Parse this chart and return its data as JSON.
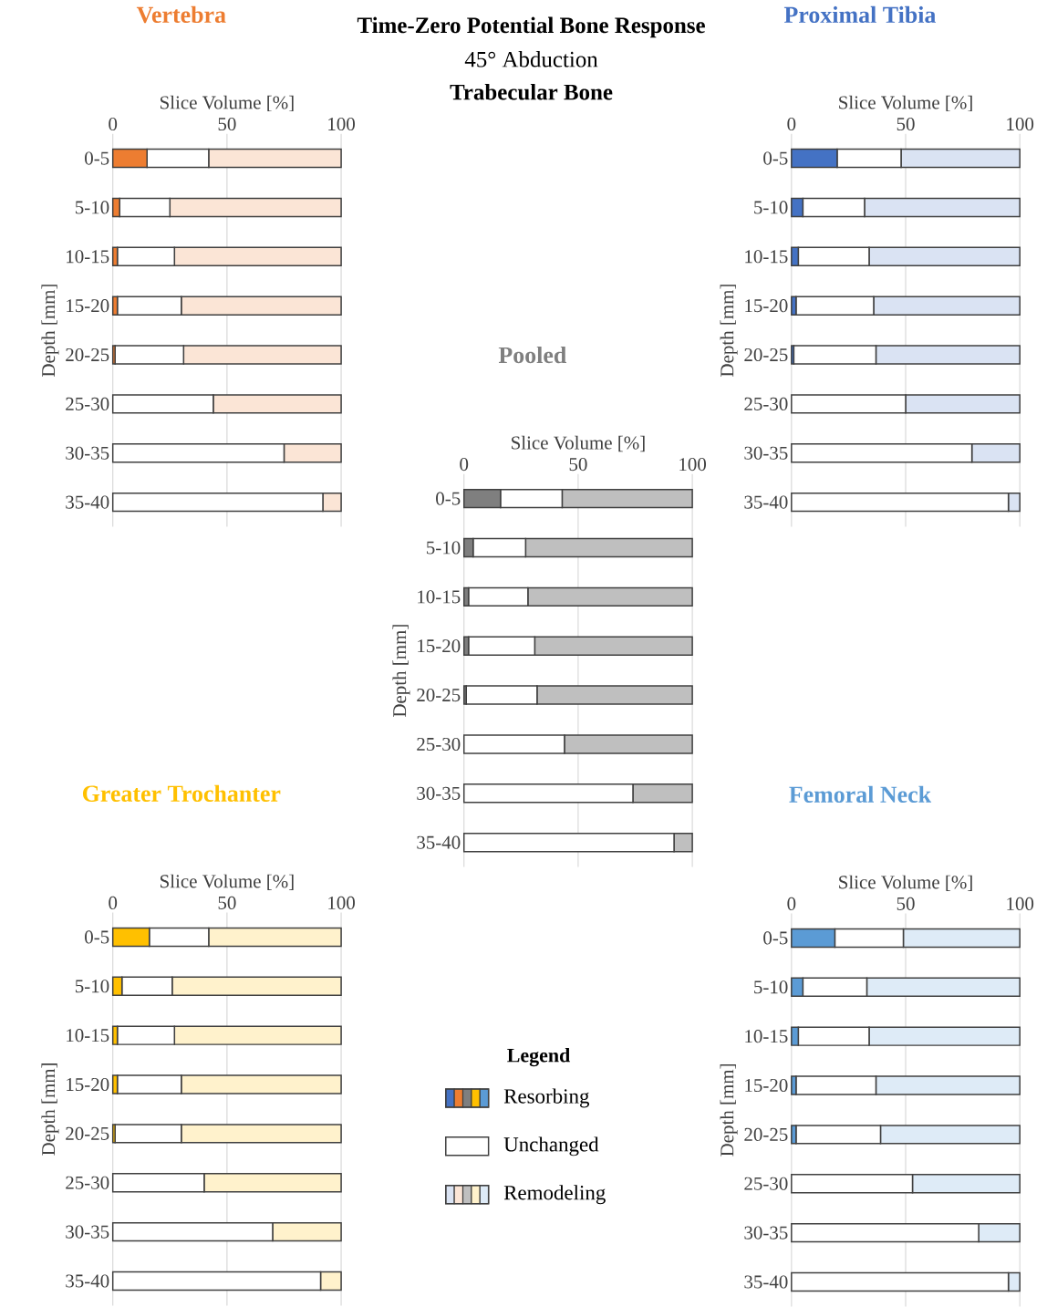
{
  "chart_data": [
    {
      "type": "bar",
      "orientation": "horizontal",
      "stacked": true,
      "title": "Vertebra",
      "xlabel": "Slice Volume [%]",
      "ylabel": "Depth [mm]",
      "categories": [
        "0-5",
        "5-10",
        "10-15",
        "15-20",
        "20-25",
        "25-30",
        "30-35",
        "35-40"
      ],
      "xlim": [
        0,
        100
      ],
      "xticks": [
        0,
        50,
        100
      ],
      "grid": "x",
      "series": [
        {
          "color": "#ed7d31",
          "values": [
            15,
            3,
            2,
            2,
            1,
            0,
            0,
            0
          ]
        },
        {
          "color": "#ffffff",
          "values": [
            27,
            22,
            25,
            28,
            30,
            44,
            75,
            92
          ]
        },
        {
          "color": "#fbe5d6",
          "values": [
            58,
            75,
            73,
            70,
            69,
            56,
            25,
            8
          ]
        }
      ]
    },
    {
      "type": "bar",
      "orientation": "horizontal",
      "stacked": true,
      "title": "Proximal Tibia",
      "xlabel": "Slice Volume [%]",
      "ylabel": "Depth [mm]",
      "categories": [
        "0-5",
        "5-10",
        "10-15",
        "15-20",
        "20-25",
        "25-30",
        "30-35",
        "35-40"
      ],
      "xlim": [
        0,
        100
      ],
      "xticks": [
        0,
        50,
        100
      ],
      "grid": "x",
      "series": [
        {
          "color": "#4472c4",
          "values": [
            20,
            5,
            3,
            2,
            1,
            0,
            0,
            0
          ]
        },
        {
          "color": "#ffffff",
          "values": [
            28,
            27,
            31,
            34,
            36,
            50,
            79,
            95
          ]
        },
        {
          "color": "#dae3f3",
          "values": [
            52,
            68,
            66,
            64,
            63,
            50,
            21,
            5
          ]
        }
      ]
    },
    {
      "type": "bar",
      "orientation": "horizontal",
      "stacked": true,
      "title": "Pooled",
      "xlabel": "Slice Volume [%]",
      "ylabel": "Depth [mm]",
      "categories": [
        "0-5",
        "5-10",
        "10-15",
        "15-20",
        "20-25",
        "25-30",
        "30-35",
        "35-40"
      ],
      "xlim": [
        0,
        100
      ],
      "xticks": [
        0,
        50,
        100
      ],
      "grid": "x",
      "legend": "bottom",
      "legend_title": "Legend",
      "annotations": [
        "Time-Zero Potential Bone Response",
        "45° Abduction",
        "Trabecular Bone"
      ],
      "series": [
        {
          "name": "Resorbing",
          "color": "#7f7f7f",
          "values": [
            16,
            4,
            2,
            2,
            1,
            0,
            0,
            0
          ]
        },
        {
          "name": "Unchanged",
          "color": "#ffffff",
          "values": [
            27,
            23,
            26,
            29,
            31,
            44,
            74,
            92
          ]
        },
        {
          "name": "Remodeling",
          "color": "#bfbfbf",
          "values": [
            57,
            73,
            72,
            69,
            68,
            56,
            26,
            8
          ]
        }
      ]
    },
    {
      "type": "bar",
      "orientation": "horizontal",
      "stacked": true,
      "title": "Greater Trochanter",
      "xlabel": "Slice Volume [%]",
      "ylabel": "Depth [mm]",
      "categories": [
        "0-5",
        "5-10",
        "10-15",
        "15-20",
        "20-25",
        "25-30",
        "30-35",
        "35-40"
      ],
      "xlim": [
        0,
        100
      ],
      "xticks": [
        0,
        50,
        100
      ],
      "grid": "x",
      "series": [
        {
          "color": "#ffc000",
          "values": [
            16,
            4,
            2,
            2,
            1,
            0,
            0,
            0
          ]
        },
        {
          "color": "#ffffff",
          "values": [
            26,
            22,
            25,
            28,
            29,
            40,
            70,
            91
          ]
        },
        {
          "color": "#fff2cc",
          "values": [
            58,
            74,
            73,
            70,
            70,
            60,
            30,
            9
          ]
        }
      ]
    },
    {
      "type": "bar",
      "orientation": "horizontal",
      "stacked": true,
      "title": "Femoral Neck",
      "xlabel": "Slice Volume [%]",
      "ylabel": "Depth [mm]",
      "categories": [
        "0-5",
        "5-10",
        "10-15",
        "15-20",
        "20-25",
        "25-30",
        "30-35",
        "35-40"
      ],
      "xlim": [
        0,
        100
      ],
      "xticks": [
        0,
        50,
        100
      ],
      "grid": "x",
      "series": [
        {
          "color": "#5b9bd5",
          "values": [
            19,
            5,
            3,
            2,
            2,
            0,
            0,
            0
          ]
        },
        {
          "color": "#ffffff",
          "values": [
            30,
            28,
            31,
            35,
            37,
            53,
            82,
            95
          ]
        },
        {
          "color": "#deebf7",
          "values": [
            51,
            67,
            66,
            63,
            61,
            47,
            18,
            5
          ]
        }
      ]
    }
  ]
}
